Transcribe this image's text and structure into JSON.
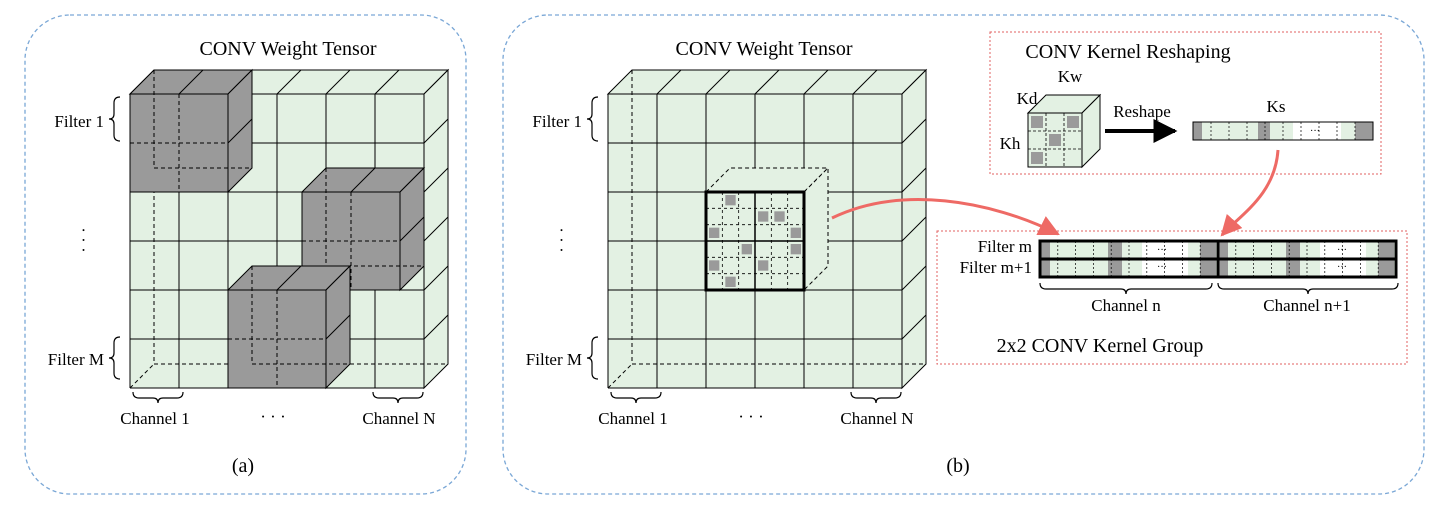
{
  "panel_a": {
    "title": "CONV Weight Tensor",
    "filter_first": "Filter 1",
    "filter_last": "Filter M",
    "vdots": "· · ·",
    "channel_first": "Channel 1",
    "hdots": "· · ·",
    "channel_last": "Channel N",
    "caption": "(a)"
  },
  "panel_b": {
    "title": "CONV Weight Tensor",
    "filter_first": "Filter 1",
    "filter_last": "Filter M",
    "vdots": "· · ·",
    "channel_first": "Channel 1",
    "hdots": "· · ·",
    "channel_last": "Channel N",
    "caption": "(b)",
    "reshaping": {
      "title": "CONV Kernel Reshaping",
      "kd": "Kd",
      "kw": "Kw",
      "kh": "Kh",
      "reshape": "Reshape",
      "ks": "Ks",
      "ellipsis": "···"
    },
    "group": {
      "filter_m": "Filter m",
      "filter_m1": "Filter m+1",
      "channel_n": "Channel n",
      "channel_n1": "Channel n+1",
      "ellipsis": "···",
      "title": "2x2 CONV Kernel Group"
    }
  },
  "colors": {
    "cell_fill": "#e3f1e3",
    "highlight_fill": "#9a9a9a",
    "panel_border": "#7aa7d6",
    "box_border": "#e06060",
    "arrow": "#ee6a65"
  }
}
